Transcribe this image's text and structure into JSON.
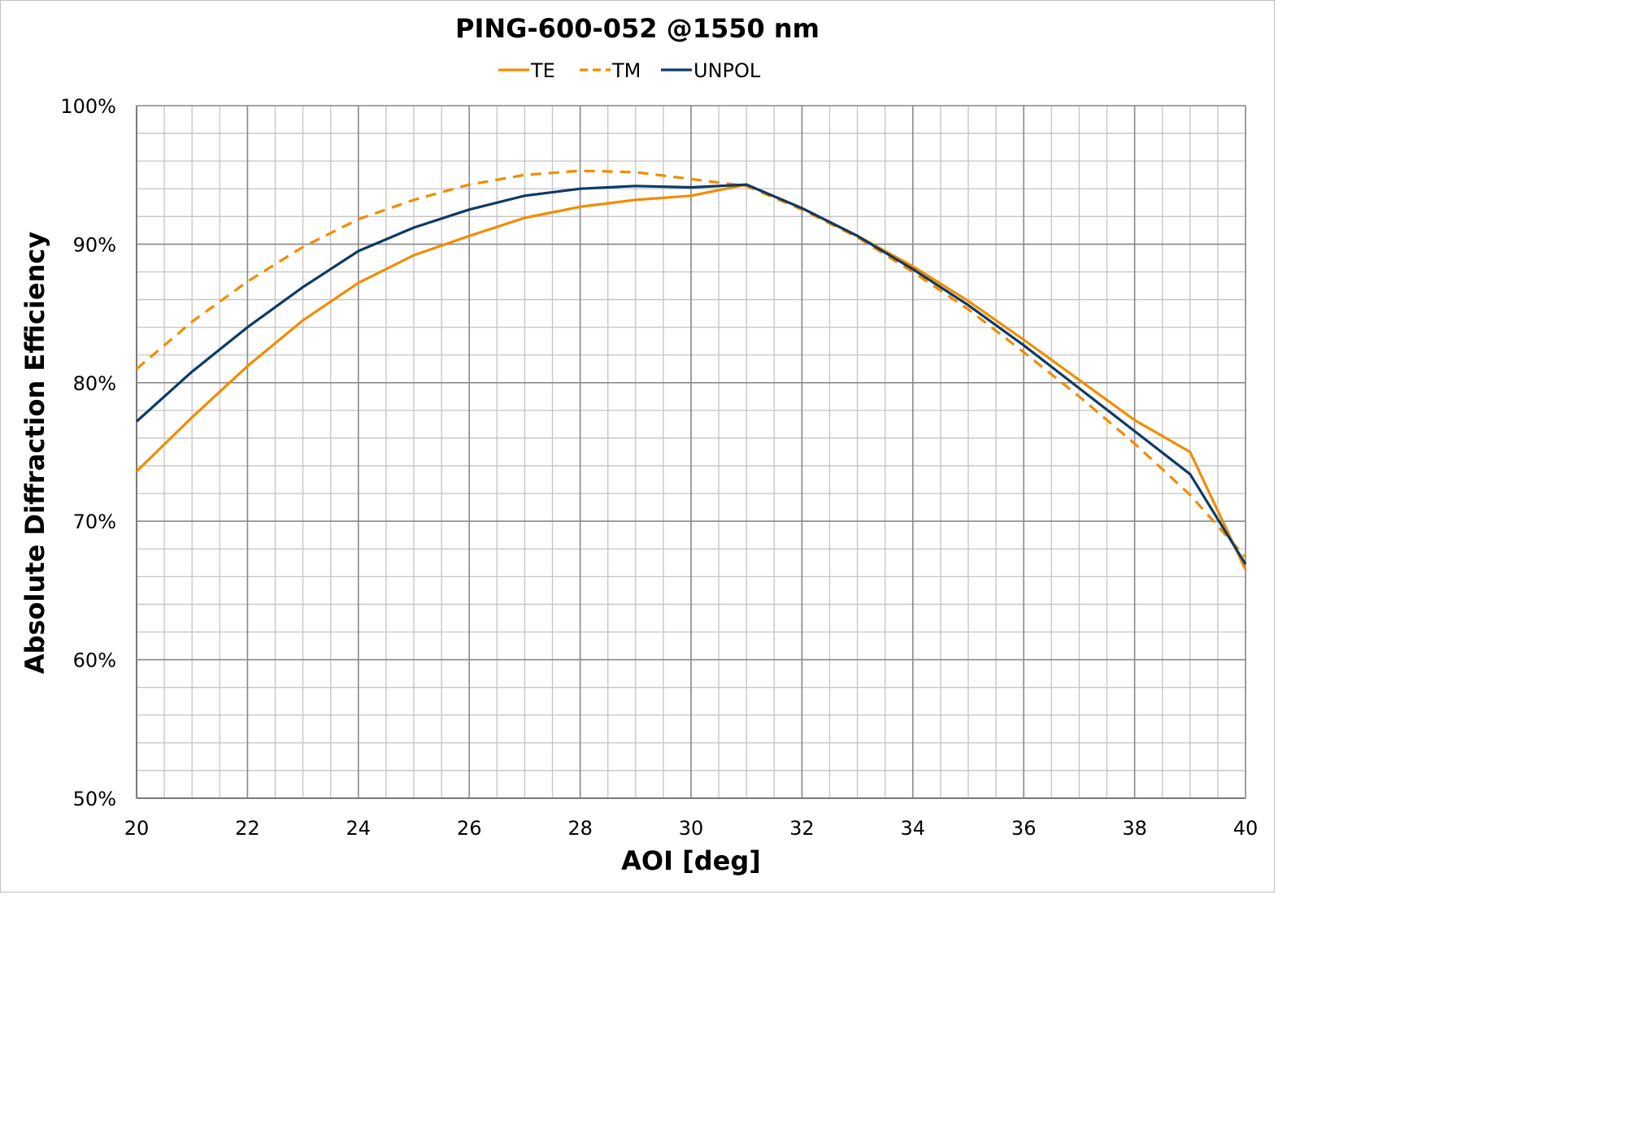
{
  "chart_data": {
    "type": "line",
    "title": "PING-600-052 @1550 nm",
    "xlabel": "AOI [deg]",
    "ylabel": "Absolute Diffraction Efficiency",
    "xlim": [
      20,
      40
    ],
    "ylim": [
      50,
      100
    ],
    "x_ticks": [
      20,
      22,
      24,
      26,
      28,
      30,
      32,
      34,
      36,
      38,
      40
    ],
    "x_tick_labels": [
      "20",
      "22",
      "24",
      "26",
      "28",
      "30",
      "32",
      "34",
      "36",
      "38",
      "40"
    ],
    "y_ticks": [
      50,
      60,
      70,
      80,
      90,
      100
    ],
    "y_tick_labels": [
      "50%",
      "60%",
      "70%",
      "80%",
      "90%",
      "100%"
    ],
    "grid": true,
    "legend_position": "top-center",
    "x": [
      20,
      21,
      22,
      23,
      24,
      25,
      26,
      27,
      28,
      29,
      30,
      31,
      32,
      33,
      34,
      35,
      36,
      37,
      38,
      39,
      40
    ],
    "series": [
      {
        "name": "TE",
        "color": "#F28C00",
        "dash": "solid",
        "values": [
          73.6,
          77.5,
          81.2,
          84.5,
          87.2,
          89.2,
          90.6,
          91.9,
          92.7,
          93.2,
          93.5,
          94.3,
          92.6,
          90.6,
          88.4,
          85.9,
          83.1,
          80.2,
          77.3,
          75.0,
          66.5
        ]
      },
      {
        "name": "TM",
        "color": "#F28C00",
        "dash": "dashed",
        "values": [
          81.0,
          84.4,
          87.3,
          89.8,
          91.8,
          93.2,
          94.3,
          95.0,
          95.3,
          95.2,
          94.7,
          94.2,
          92.5,
          90.5,
          88.0,
          85.3,
          82.2,
          79.0,
          75.6,
          71.9,
          67.4
        ]
      },
      {
        "name": "UNPOL",
        "color": "#0D3A66",
        "dash": "solid",
        "values": [
          77.2,
          80.8,
          84.0,
          86.9,
          89.5,
          91.2,
          92.5,
          93.5,
          94.0,
          94.2,
          94.1,
          94.3,
          92.6,
          90.6,
          88.2,
          85.6,
          82.7,
          79.6,
          76.5,
          73.4,
          66.9
        ]
      }
    ]
  }
}
